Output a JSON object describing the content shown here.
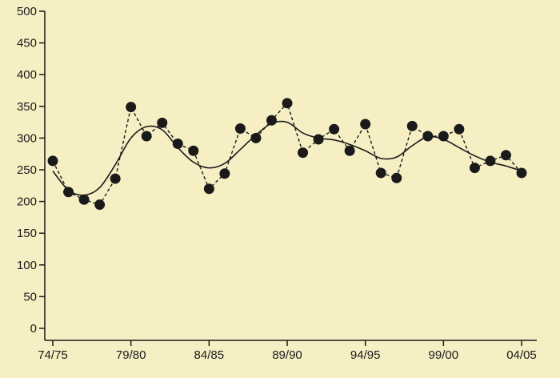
{
  "chart_data": {
    "type": "line",
    "title": "",
    "xlabel": "",
    "ylabel": "",
    "ylim": [
      0,
      500
    ],
    "xlim": [
      0,
      30
    ],
    "y_ticks": [
      0,
      50,
      100,
      150,
      200,
      250,
      300,
      350,
      400,
      450,
      500
    ],
    "x_tick_positions": [
      0,
      5,
      10,
      15,
      20,
      25,
      30
    ],
    "x_tick_labels": [
      "74/75",
      "79/80",
      "84/85",
      "89/90",
      "94/95",
      "99/00",
      "04/05"
    ],
    "grid": false,
    "legend": "none",
    "colors": {
      "background": "#f7efc4",
      "marker": "#1a1a1a",
      "line": "#1a1a1a"
    },
    "series": [
      {
        "style": "dashed-with-markers",
        "x": [
          0,
          1,
          2,
          3,
          4,
          5,
          6,
          7,
          8,
          9,
          10,
          11,
          12,
          13,
          14,
          15,
          16,
          17,
          18,
          19,
          20,
          21,
          22,
          23,
          24,
          25,
          26,
          27,
          28,
          29,
          30
        ],
        "values": [
          264,
          215,
          203,
          195,
          236,
          349,
          303,
          324,
          291,
          280,
          220,
          244,
          315,
          300,
          328,
          355,
          277,
          298,
          314,
          280,
          322,
          245,
          237,
          319,
          303,
          303,
          314,
          253,
          264,
          273,
          245
        ]
      },
      {
        "style": "solid-smooth",
        "x": [
          0,
          1,
          2,
          3,
          4,
          5,
          6,
          7,
          8,
          9,
          10,
          11,
          12,
          13,
          14,
          15,
          16,
          17,
          18,
          19,
          20,
          21,
          22,
          23,
          24,
          25,
          26,
          27,
          28,
          29,
          30
        ],
        "values": [
          248,
          218,
          210,
          222,
          258,
          300,
          318,
          313,
          285,
          262,
          253,
          260,
          282,
          305,
          323,
          325,
          308,
          300,
          297,
          290,
          280,
          268,
          270,
          288,
          302,
          298,
          285,
          272,
          262,
          256,
          248
        ]
      }
    ]
  }
}
